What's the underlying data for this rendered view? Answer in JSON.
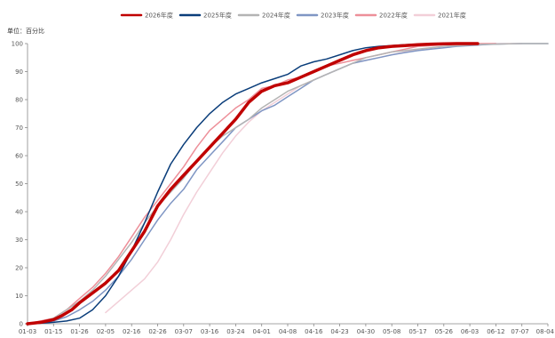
{
  "chart_data": {
    "type": "line",
    "unit_label": "单位：百分比",
    "x_tick_labels": [
      "01-03",
      "01-15",
      "01-26",
      "02-05",
      "02-16",
      "02-26",
      "03-07",
      "03-16",
      "03-24",
      "04-01",
      "04-08",
      "04-16",
      "04-23",
      "04-30",
      "05-08",
      "05-17",
      "05-26",
      "06-03",
      "06-12",
      "07-07",
      "08-04"
    ],
    "y_tick_labels": [
      "0",
      "10",
      "20",
      "30",
      "40",
      "50",
      "60",
      "70",
      "80",
      "90",
      "100"
    ],
    "ylim": [
      0,
      100
    ],
    "grid": false,
    "legend_position": "top",
    "series": [
      {
        "name": "2026年度",
        "color": "#c00000",
        "x": [
          0,
          0.5,
          1,
          1.3,
          1.7,
          2,
          2.5,
          3,
          3.5,
          4,
          4.5,
          5,
          5.5,
          6,
          6.5,
          7,
          7.5,
          8,
          8.5,
          9,
          9.5,
          10,
          10.5,
          11,
          11.5,
          12,
          12.5,
          13,
          13.5,
          14,
          14.5,
          15,
          15.5,
          16,
          16.5,
          17,
          17.3
        ],
        "y": [
          0,
          0.5,
          1.5,
          2.8,
          5,
          7.5,
          11,
          14.5,
          19,
          26,
          33,
          42,
          48,
          53,
          58,
          63,
          68,
          73,
          79,
          83,
          85,
          86,
          88,
          90,
          92,
          94,
          96,
          97.5,
          98.5,
          99,
          99.3,
          99.6,
          99.8,
          99.9,
          100,
          100,
          100
        ]
      },
      {
        "name": "2025年度",
        "color": "#0a3d7a",
        "x": [
          0,
          0.5,
          1,
          1.5,
          2,
          2.5,
          3,
          3.5,
          4,
          4.5,
          5,
          5.5,
          6,
          6.5,
          7,
          7.5,
          8,
          8.5,
          9,
          9.5,
          10,
          10.5,
          11,
          11.5,
          12,
          12.5,
          13,
          13.5,
          14,
          14.5,
          15,
          15.5,
          16
        ],
        "y": [
          0,
          0.2,
          0.5,
          1,
          2,
          5,
          10,
          17,
          26,
          36,
          47,
          57,
          64,
          70,
          75,
          79,
          82,
          84,
          86,
          87.5,
          89,
          92,
          93.5,
          94.5,
          96,
          97.5,
          98.5,
          99,
          99.3,
          99.6,
          99.8,
          99.9,
          100
        ]
      },
      {
        "name": "2024年度",
        "color": "#b4b4b4",
        "x": [
          0,
          0.5,
          1,
          1.5,
          2,
          2.5,
          3,
          3.5,
          4,
          4.5,
          5,
          5.5,
          6,
          6.5,
          7,
          7.5,
          8,
          8.5,
          9,
          9.5,
          10,
          10.5,
          11,
          11.5,
          12,
          12.5,
          13,
          13.5,
          14,
          14.5,
          15,
          15.5,
          16,
          16.5,
          17,
          17.5,
          18,
          18.5,
          19,
          19.5,
          20
        ],
        "y": [
          0,
          0.5,
          2,
          5,
          8,
          12,
          17,
          23,
          29,
          36,
          42,
          47,
          52,
          58,
          63,
          67,
          70,
          73,
          77,
          80,
          83,
          85,
          87,
          89,
          91,
          93,
          95,
          96,
          97,
          97.5,
          98,
          98.5,
          99,
          99.2,
          99.5,
          99.7,
          99.8,
          99.9,
          100,
          100,
          100
        ]
      },
      {
        "name": "2023年度",
        "color": "#7f96c4",
        "x": [
          0,
          0.5,
          1,
          1.5,
          2,
          2.5,
          3,
          3.5,
          4,
          4.5,
          5,
          5.5,
          6,
          6.5,
          7,
          7.5,
          8,
          8.5,
          9,
          9.5,
          10,
          10.5,
          11,
          11.5,
          12,
          12.5,
          13,
          13.5,
          14,
          14.5,
          15,
          15.5,
          16,
          16.5,
          17,
          17.5,
          18,
          18.5,
          19,
          19.5,
          20
        ],
        "y": [
          0,
          0.3,
          1,
          2.5,
          5,
          8,
          12,
          17,
          23,
          30,
          37,
          43,
          48,
          55,
          60,
          65,
          70,
          73,
          76,
          78,
          81,
          84,
          87,
          89,
          91,
          93,
          94,
          95,
          96,
          96.8,
          97.5,
          98,
          98.5,
          99,
          99.3,
          99.6,
          99.8,
          99.9,
          100,
          100,
          100
        ]
      },
      {
        "name": "2022年度",
        "color": "#ed8f99",
        "x": [
          0,
          0.5,
          1,
          1.5,
          2,
          2.5,
          3,
          3.5,
          4,
          4.5,
          5,
          5.5,
          6,
          6.5,
          7,
          7.5,
          8,
          8.5,
          9,
          9.5,
          10,
          10.5,
          11,
          11.5,
          12,
          12.5,
          13,
          13.5,
          14,
          14.5,
          15,
          15.5,
          16,
          16.5,
          17,
          17.5,
          18
        ],
        "y": [
          0,
          1,
          2,
          5,
          9,
          13,
          18,
          24,
          31,
          38,
          44,
          50,
          56,
          63,
          69,
          73,
          77,
          80,
          84,
          85,
          87,
          88,
          90,
          92,
          93,
          94,
          95,
          96,
          97,
          98,
          99,
          99.3,
          99.6,
          99.8,
          100,
          100,
          100
        ]
      },
      {
        "name": "2021年度",
        "color": "#f2cfd8",
        "x": [
          3,
          3.5,
          4,
          4.5,
          5,
          5.5,
          6,
          6.5,
          7,
          7.5,
          8,
          8.5,
          9,
          9.5,
          10,
          10.5,
          11,
          11.5,
          12,
          12.5,
          13,
          13.5,
          14,
          14.5,
          15,
          15.5,
          16,
          16.5,
          17,
          17.5,
          18,
          18.5,
          19
        ],
        "y": [
          4,
          8,
          12,
          16,
          22,
          30,
          39,
          47,
          54,
          61,
          67,
          72,
          76,
          79,
          82,
          85,
          87,
          89,
          91,
          93,
          94,
          95,
          96,
          97,
          97.8,
          98.5,
          99,
          99.3,
          99.6,
          99.8,
          100,
          100,
          100
        ]
      }
    ]
  }
}
